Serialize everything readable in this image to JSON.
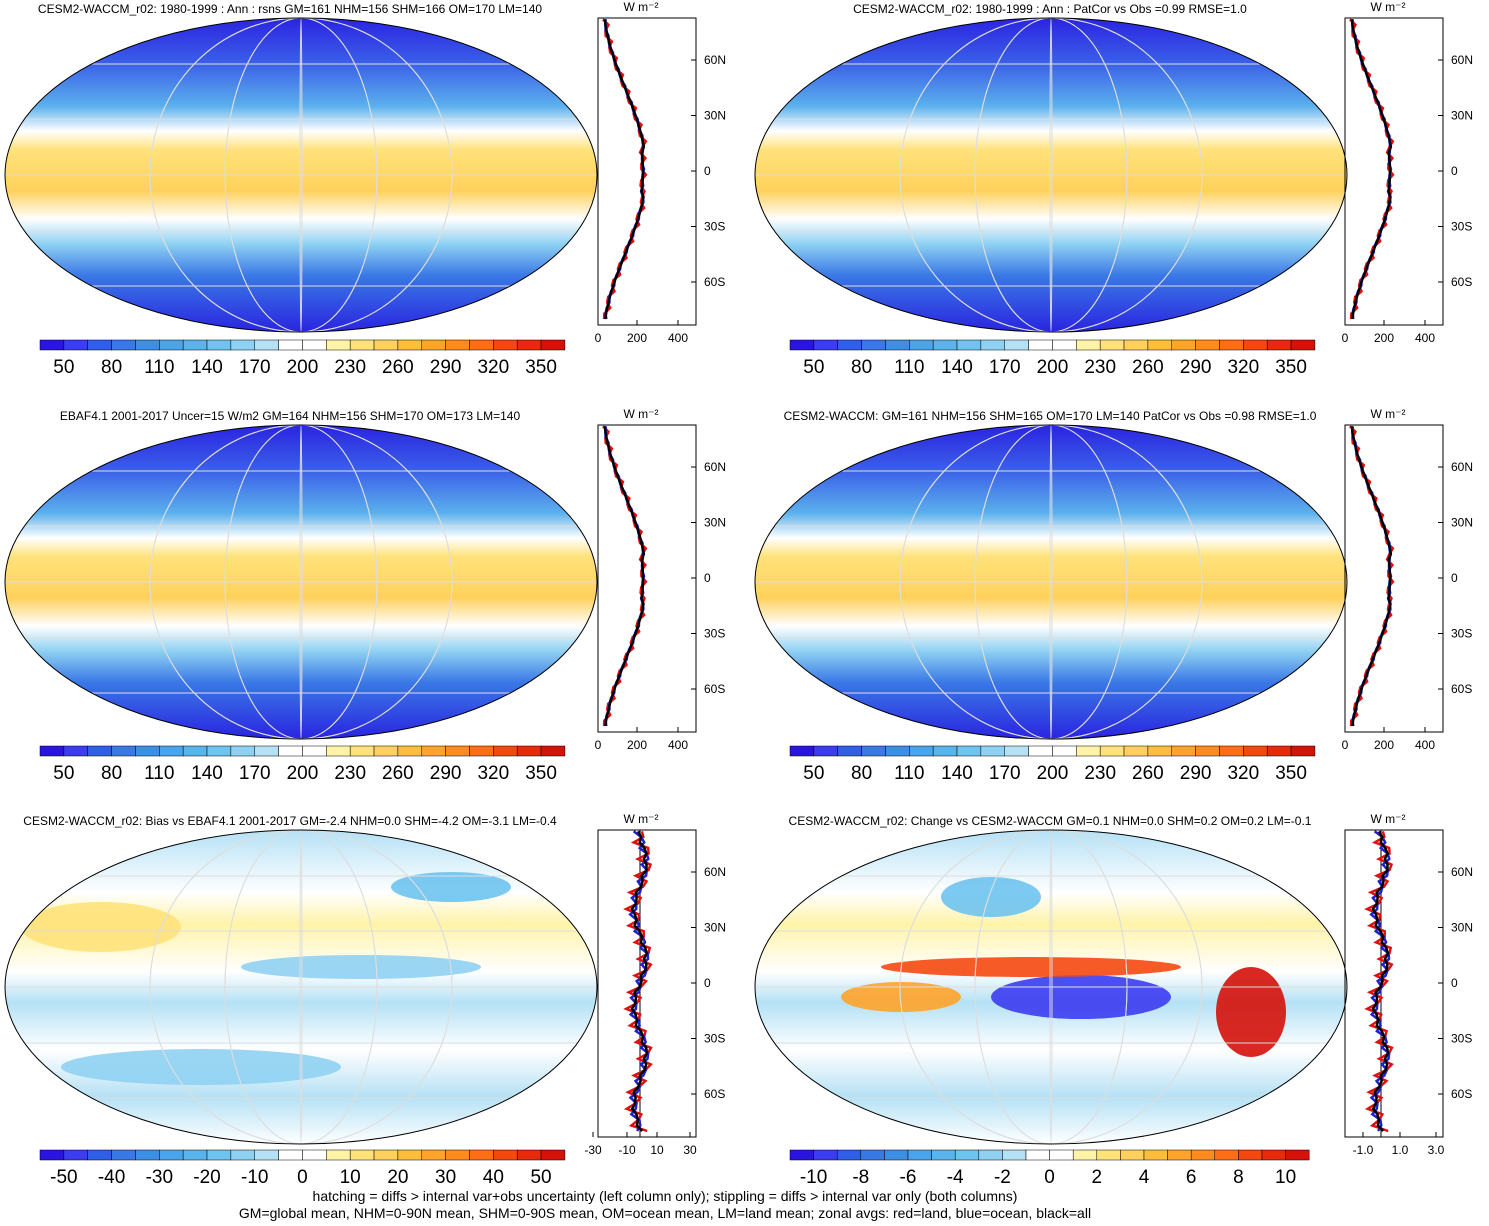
{
  "panels": [
    {
      "title": "CESM2-WACCM_r02: 1980-1999 : Ann : rsns GM=161 NHM=156 SHM=166 OM=170 LM=140",
      "colorbar": [
        "50",
        "80",
        "110",
        "140",
        "170",
        "200",
        "230",
        "260",
        "290",
        "320",
        "350"
      ],
      "zonal": {
        "unit": "W m⁻²",
        "xticks": [
          "0",
          "200",
          "400"
        ],
        "yticks": [
          "60N",
          "30N",
          "0",
          "30S",
          "60S"
        ]
      }
    },
    {
      "title": "CESM2-WACCM_r02: 1980-1999 : Ann : PatCor vs Obs =0.99 RMSE=1.0",
      "colorbar": [
        "50",
        "80",
        "110",
        "140",
        "170",
        "200",
        "230",
        "260",
        "290",
        "320",
        "350"
      ],
      "zonal": {
        "unit": "W m⁻²",
        "xticks": [
          "0",
          "200",
          "400"
        ],
        "yticks": [
          "60N",
          "30N",
          "0",
          "30S",
          "60S"
        ]
      }
    },
    {
      "title": "EBAF4.1 2001-2017 Uncer=15 W/m2 GM=164 NHM=156 SHM=170 OM=173 LM=140",
      "colorbar": [
        "50",
        "80",
        "110",
        "140",
        "170",
        "200",
        "230",
        "260",
        "290",
        "320",
        "350"
      ],
      "zonal": {
        "unit": "W m⁻²",
        "xticks": [
          "0",
          "200",
          "400"
        ],
        "yticks": [
          "60N",
          "30N",
          "0",
          "30S",
          "60S"
        ]
      }
    },
    {
      "title": "CESM2-WACCM: GM=161 NHM=156 SHM=165 OM=170 LM=140 PatCor vs Obs =0.98 RMSE=1.0",
      "colorbar": [
        "50",
        "80",
        "110",
        "140",
        "170",
        "200",
        "230",
        "260",
        "290",
        "320",
        "350"
      ],
      "zonal": {
        "unit": "W m⁻²",
        "xticks": [
          "0",
          "200",
          "400"
        ],
        "yticks": [
          "60N",
          "30N",
          "0",
          "30S",
          "60S"
        ]
      }
    },
    {
      "title": "CESM2-WACCM_r02: Bias vs EBAF4.1 2001-2017 GM=-2.4 NHM=0.0 SHM=-4.2 OM=-3.1 LM=-0.4",
      "colorbar": [
        "-50",
        "-40",
        "-30",
        "-20",
        "-10",
        "0",
        "10",
        "20",
        "30",
        "40",
        "50"
      ],
      "zonal": {
        "unit": "W m⁻²",
        "xticks": [
          "-30",
          "-10",
          "10",
          "30"
        ],
        "yticks": [
          "60N",
          "30N",
          "0",
          "30S",
          "60S"
        ]
      }
    },
    {
      "title": "CESM2-WACCM_r02: Change vs CESM2-WACCM GM=0.1 NHM=0.0 SHM=0.2 OM=0.2 LM=-0.1",
      "colorbar": [
        "-10",
        "-8",
        "-6",
        "-4",
        "-2",
        "0",
        "2",
        "4",
        "6",
        "8",
        "10"
      ],
      "zonal": {
        "unit": "W m⁻²",
        "xticks": [
          "-1.0",
          "1.0",
          "3.0"
        ],
        "yticks": [
          "60N",
          "30N",
          "0",
          "30S",
          "60S"
        ]
      }
    }
  ],
  "footer": [
    "hatching = diffs > internal var+obs uncertainty (left column only); stippling = diffs > internal var only (both columns)",
    "GM=global mean, NHM=0-90N mean, SHM=0-90S mean, OM=ocean mean, LM=land mean; zonal avgs: red=land, blue=ocean, black=all"
  ]
}
